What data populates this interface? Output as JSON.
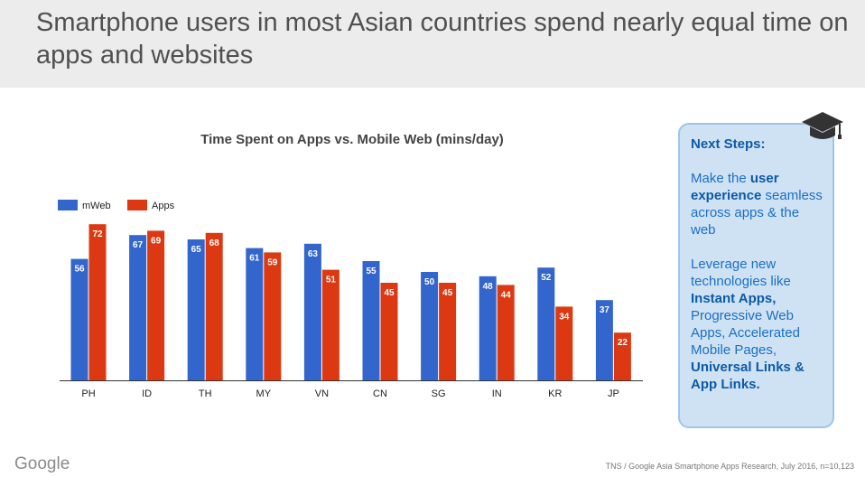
{
  "header": {
    "title": "Smartphone users in most Asian countries spend nearly equal time on apps and websites"
  },
  "chart_data": {
    "type": "bar",
    "title": "Time Spent on Apps vs. Mobile Web (mins/day)",
    "categories": [
      "PH",
      "ID",
      "TH",
      "MY",
      "VN",
      "CN",
      "SG",
      "IN",
      "KR",
      "JP"
    ],
    "series": [
      {
        "name": "mWeb",
        "color": "#3366cc",
        "values": [
          56,
          67,
          65,
          61,
          63,
          55,
          50,
          48,
          52,
          37
        ]
      },
      {
        "name": "Apps",
        "color": "#dc3912",
        "values": [
          72,
          69,
          68,
          59,
          51,
          45,
          45,
          44,
          34,
          22
        ]
      }
    ],
    "ylim": [
      0,
      80
    ],
    "legend_position": "top-left",
    "grid": false,
    "data_labels": true
  },
  "panel": {
    "heading": "Next Steps:",
    "p1_pre": "Make the ",
    "p1_bold": "user experience",
    "p1_post": " seamless across apps & the web",
    "p2_pre": "Leverage new technologies like ",
    "p2_bold1": "Instant Apps,",
    "p2_mid": " Progressive Web Apps, Accelerated Mobile Pages, ",
    "p2_bold2": "Universal Links & App Links."
  },
  "icons": {
    "panel_icon": "graduation-cap-icon"
  },
  "footer": {
    "logo": "Google",
    "source": "TNS / Google Asia Smartphone Apps Research, July 2016, n=10,123"
  }
}
